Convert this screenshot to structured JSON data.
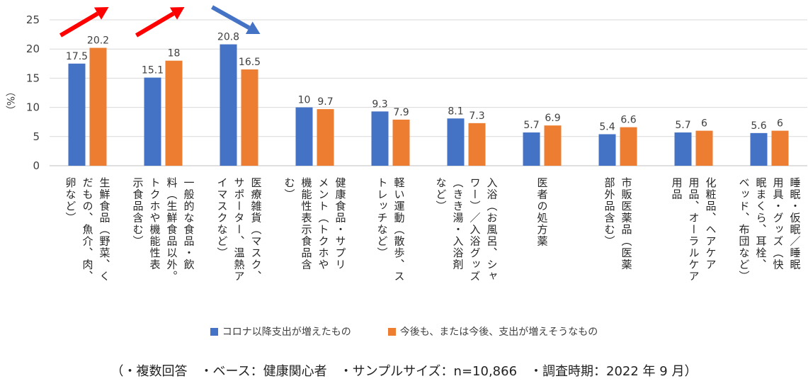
{
  "chart_data": {
    "type": "bar",
    "ylabel": "（%）",
    "ylim": [
      0,
      25
    ],
    "yticks": [
      "0",
      "5",
      "10",
      "15",
      "20",
      "25"
    ],
    "grid": true,
    "legend_position": "bottom",
    "categories": [
      "生鮮食品（野菜、くだもの、魚介、肉、卵など）",
      "一般的な食品・飲料（生鮮食品以外。トクホや機能性表示食品含む）",
      "医療雑貨（マスク、サポーター、温熱アイマスクなど）",
      "健康食品・サプリメント（トクホや機能性表示食品含む）",
      "軽い運動（散歩、ストレッチなど）",
      "入浴（お風呂、シャワー）／入浴グッズ（きき湯・入浴剤など）",
      "医者の処方薬",
      "市販医薬品（医薬部外品含む）",
      "化粧品、ヘアケア用品、オーラルケア用品",
      "睡眠・仮眠／睡眠用具・グッズ（快眠まくら、耳栓、ベッド、布団など）"
    ],
    "category_lines": [
      [
        "生鮮食品（野菜、く",
        "だもの、魚介、肉、",
        "卵など）"
      ],
      [
        "一般的な食品・飲",
        "料（生鮮食品以外。",
        "トクホや機能性表",
        "示食品含む）"
      ],
      [
        "医療雑貨（マスク、",
        "サポーター、温熱ア",
        "イマスクなど）"
      ],
      [
        "健康食品・サプリ",
        "メント（トクホや",
        "機能性表示食品含",
        "む）"
      ],
      [
        "軽い運動（散歩、ス",
        "トレッチなど）"
      ],
      [
        "入浴（お風呂、シャ",
        "ワー）／入浴グッズ",
        "（きき湯・入浴剤",
        "など）"
      ],
      [
        "医者の処方薬"
      ],
      [
        "市販医薬品（医薬",
        "部外品含む）"
      ],
      [
        "化粧品、ヘアケア",
        "用品、オーラルケア",
        "用品"
      ],
      [
        "睡眠・仮眠／睡眠",
        "用具・グッズ（快",
        "眠まくら、耳栓、",
        "ベッド、布団など）"
      ]
    ],
    "series": [
      {
        "name": "コロナ以降支出が増えたもの",
        "color": "#4472C4",
        "values": [
          17.5,
          15.1,
          20.8,
          10,
          9.3,
          8.1,
          5.7,
          5.4,
          5.7,
          5.6
        ]
      },
      {
        "name": "今後も、または今後、支出が増えそうなもの",
        "color": "#ED7D31",
        "values": [
          20.2,
          18,
          16.5,
          9.7,
          7.9,
          7.3,
          6.9,
          6.6,
          6,
          6
        ]
      }
    ],
    "annotations": [
      {
        "type": "arrow",
        "category_index": 0,
        "direction": "up",
        "color": "#FF0000"
      },
      {
        "type": "arrow",
        "category_index": 1,
        "direction": "up",
        "color": "#FF0000"
      },
      {
        "type": "arrow",
        "category_index": 2,
        "direction": "down",
        "color": "#4472C4"
      }
    ]
  },
  "legend": {
    "series1": "コロナ以降支出が増えたもの",
    "series2": "今後も、または今後、支出が増えそうなもの"
  },
  "footnote": "（・複数回答　・ベース：健康関心者　・サンプルサイズ：n=10,866　・調査時期：2022 年 9 月）"
}
